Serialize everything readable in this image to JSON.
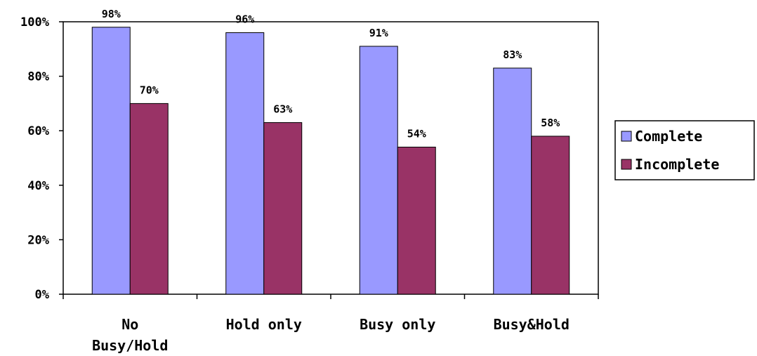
{
  "chart_data": {
    "type": "bar",
    "title": "",
    "xlabel": "",
    "ylabel": "",
    "ylim": [
      0,
      100
    ],
    "y_ticks": [
      "0%",
      "20%",
      "40%",
      "60%",
      "80%",
      "100%"
    ],
    "y_tick_values": [
      0,
      20,
      40,
      60,
      80,
      100
    ],
    "categories": [
      [
        "No",
        "Busy/Hold"
      ],
      [
        "Hold only"
      ],
      [
        "Busy only"
      ],
      [
        "Busy&Hold"
      ]
    ],
    "series": [
      {
        "name": "Complete",
        "color": "#9999ff",
        "values": [
          98,
          96,
          91,
          83
        ],
        "labels": [
          "98%",
          "96%",
          "91%",
          "83%"
        ]
      },
      {
        "name": "Incomplete",
        "color": "#993366",
        "values": [
          70,
          63,
          54,
          58
        ],
        "labels": [
          "70%",
          "63%",
          "54%",
          "58%"
        ]
      }
    ],
    "grid": false,
    "legend_position": "right"
  }
}
